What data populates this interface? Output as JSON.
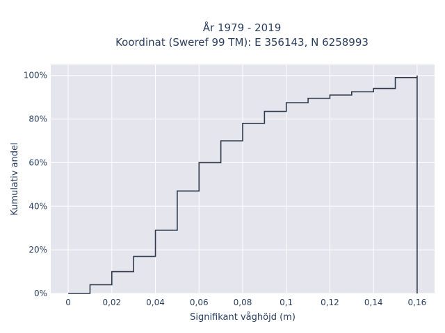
{
  "chart_data": {
    "type": "line",
    "line_shape": "step",
    "title": [
      "År 1979 - 2019",
      "Koordinat (Sweref 99 TM): E 356143, N 6258993"
    ],
    "xlabel": "Signifikant våghöjd (m)",
    "ylabel": "Kumulativ andel",
    "xlim": [
      -0.008,
      0.168
    ],
    "ylim": [
      0,
      1.05
    ],
    "x_ticks": [
      0,
      0.02,
      0.04,
      0.06,
      0.08,
      0.1,
      0.12,
      0.14,
      0.16
    ],
    "x_tick_labels": [
      "0",
      "0,02",
      "0,04",
      "0,06",
      "0,08",
      "0,1",
      "0,12",
      "0,14",
      "0,16"
    ],
    "y_ticks": [
      0,
      0.2,
      0.4,
      0.6,
      0.8,
      1.0
    ],
    "y_tick_labels": [
      "0%",
      "20%",
      "40%",
      "60%",
      "80%",
      "100%"
    ],
    "grid": true,
    "series": [
      {
        "color": "#2e3a4a",
        "x": [
          0,
          0.01,
          0.02,
          0.03,
          0.04,
          0.05,
          0.06,
          0.07,
          0.08,
          0.09,
          0.1,
          0.11,
          0.12,
          0.13,
          0.14,
          0.15,
          0.16
        ],
        "y": [
          0,
          0.04,
          0.1,
          0.17,
          0.29,
          0.47,
          0.6,
          0.7,
          0.78,
          0.835,
          0.875,
          0.895,
          0.91,
          0.925,
          0.94,
          0.99,
          1.0
        ],
        "end_drop_to": 0
      }
    ],
    "colors": {
      "plot_bg": "#e5e5ee",
      "grid": "#ffffff",
      "text": "#2a3f5f",
      "line": "#2e3a4a"
    }
  }
}
